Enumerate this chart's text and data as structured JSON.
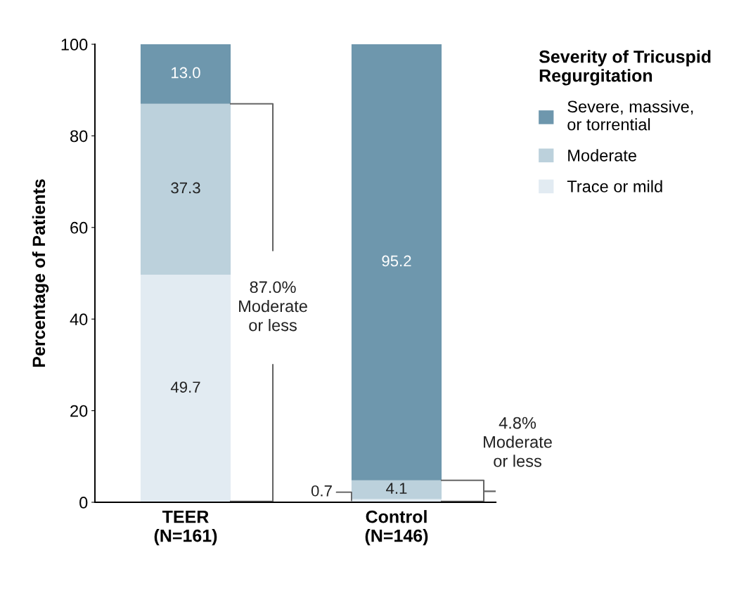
{
  "chart_data": {
    "type": "bar",
    "stacked": true,
    "ylabel": "Percentage of Patients",
    "legend_title": "Severity of Tricuspid\nRegurgitation",
    "legend": "top right",
    "categories": [
      "TEER\n(N=161)",
      "Control\n(N=146)"
    ],
    "series": [
      {
        "name": "Trace or mild",
        "color": "#e2ebf2",
        "values": [
          49.7,
          0.7
        ],
        "value_labels": [
          "49.7",
          "0.7"
        ]
      },
      {
        "name": "Moderate",
        "color": "#bcd1dc",
        "values": [
          37.3,
          4.1
        ],
        "value_labels": [
          "37.3",
          "4.1"
        ]
      },
      {
        "name": "Severe, massive,\nor torrential",
        "color": "#6e97ad",
        "values": [
          13.0,
          95.2
        ],
        "value_labels": [
          "13.0",
          "95.2"
        ]
      }
    ],
    "ylim": [
      0,
      100
    ],
    "yticks": [
      0,
      20,
      40,
      60,
      80,
      100
    ],
    "grid": false,
    "annotations": [
      "87.0%\nModerate\nor less",
      "4.8%\nModerate\nor less"
    ]
  }
}
